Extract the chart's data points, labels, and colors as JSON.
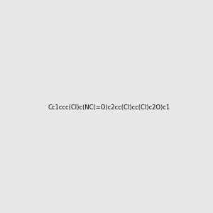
{
  "smiles": "Cc1ccc(Cl)c(NC(=O)c2cc(Cl)cc(Cl)c2O)c1",
  "title": "",
  "background_color": "#e8e8e8",
  "atom_colors": {
    "C": "#000000",
    "N": "#0000ff",
    "O": "#ff0000",
    "Cl": "#00aa00",
    "H": "#000000"
  },
  "bond_color": "#000000",
  "figsize": [
    3.0,
    3.0
  ],
  "dpi": 100
}
